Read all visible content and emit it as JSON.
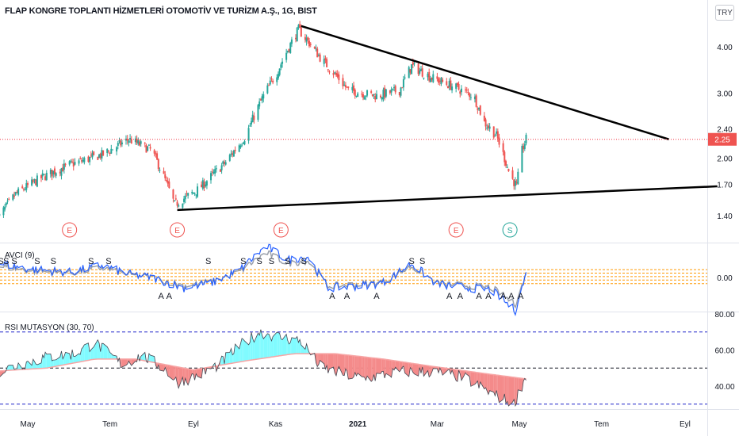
{
  "header": {
    "title": "FLAP KONGRE TOPLANTI HİZMETLERİ OTOMOTİV VE TURİZM A.Ş., 1G, BIST",
    "currency": "TRY"
  },
  "main": {
    "price_axis_ticks": [
      "4.00",
      "3.00",
      "2.40",
      "2.00",
      "1.70",
      "1.40"
    ],
    "last_price": "2.25",
    "time_axis_labels": [
      "May",
      "Tem",
      "Eyl",
      "Kas",
      "2021",
      "Mar",
      "May",
      "Tem",
      "Eyl"
    ],
    "event_markers": [
      "E",
      "E",
      "E",
      "E",
      "S"
    ]
  },
  "avci": {
    "label": "AVCI (9)",
    "axis_ticks": [
      "0.00"
    ],
    "sell_markers": [
      "S",
      "S",
      "S",
      "S",
      "S",
      "S",
      "S",
      "S",
      "S",
      "S",
      "S",
      "S",
      "S",
      "S",
      "S",
      "S",
      "S"
    ],
    "buy_markers": [
      "A",
      "A",
      "A",
      "A",
      "A",
      "A",
      "A",
      "A",
      "A",
      "A",
      "A",
      "A"
    ]
  },
  "rsi": {
    "label": "RSI MUTASYON (30, 70)",
    "axis_ticks": [
      "80.00",
      "60.00",
      "40.00"
    ]
  },
  "colors": {
    "up": "#26a69a",
    "down": "#ef5350",
    "marker_e": "#ef5350",
    "marker_s": "#26a69a",
    "rsi_above": "#80fbff",
    "rsi_below": "#f48a8a",
    "dotted_price": "#f23645",
    "band_orange": "#ff9800",
    "rsi_dash": "#1e22c9"
  },
  "chart_data": [
    {
      "type": "candlestick",
      "title": "FLAP KONGRE TOPLANTI HİZMETLERİ OTOMOTİV VE TURİZM A.Ş., 1G, BIST",
      "scale": "log",
      "ylim": [
        1.3,
        4.7
      ],
      "y_ticks": [
        4.0,
        3.0,
        2.4,
        2.0,
        1.7,
        1.4
      ],
      "last_price": 2.25,
      "x_ticks": [
        "May",
        "Tem",
        "Eyl",
        "Kas",
        "2021",
        "Mar",
        "May",
        "Tem",
        "Eyl"
      ],
      "keypoints": [
        {
          "date": "2020-04-08",
          "price": 1.36
        },
        {
          "date": "2020-04-22",
          "price": 1.6
        },
        {
          "date": "2020-05-12",
          "price": 1.78
        },
        {
          "date": "2020-06-01",
          "price": 1.92
        },
        {
          "date": "2020-06-26",
          "price": 2.05
        },
        {
          "date": "2020-07-15",
          "price": 2.25
        },
        {
          "date": "2020-08-01",
          "price": 2.1
        },
        {
          "date": "2020-08-18",
          "price": 1.5
        },
        {
          "date": "2020-09-05",
          "price": 1.65
        },
        {
          "date": "2020-09-25",
          "price": 1.95
        },
        {
          "date": "2020-10-10",
          "price": 2.3
        },
        {
          "date": "2020-10-22",
          "price": 2.9
        },
        {
          "date": "2020-11-02",
          "price": 3.4
        },
        {
          "date": "2020-11-18",
          "price": 4.45
        },
        {
          "date": "2020-12-05",
          "price": 3.7
        },
        {
          "date": "2020-12-25",
          "price": 3.05
        },
        {
          "date": "2021-01-15",
          "price": 2.95
        },
        {
          "date": "2021-02-01",
          "price": 3.05
        },
        {
          "date": "2021-02-10",
          "price": 3.55
        },
        {
          "date": "2021-02-25",
          "price": 3.3
        },
        {
          "date": "2021-03-15",
          "price": 3.1
        },
        {
          "date": "2021-03-28",
          "price": 2.95
        },
        {
          "date": "2021-04-05",
          "price": 2.5
        },
        {
          "date": "2021-04-14",
          "price": 2.3
        },
        {
          "date": "2021-04-24",
          "price": 1.8
        },
        {
          "date": "2021-04-29",
          "price": 1.68
        },
        {
          "date": "2021-05-03",
          "price": 2.1
        },
        {
          "date": "2021-05-06",
          "price": 2.25
        }
      ],
      "trendlines": [
        {
          "from": {
            "date": "2020-11-20",
            "price": 4.55
          },
          "to": {
            "date": "2021-08-20",
            "price": 2.25
          }
        },
        {
          "from": {
            "date": "2020-08-20",
            "price": 1.45
          },
          "to": {
            "date": "2021-09-25",
            "price": 1.68
          }
        }
      ],
      "event_markers": [
        {
          "label": "E",
          "date": "2020-06-01"
        },
        {
          "label": "E",
          "date": "2020-08-20"
        },
        {
          "label": "E",
          "date": "2020-11-05"
        },
        {
          "label": "E",
          "date": "2021-03-15"
        },
        {
          "label": "S",
          "date": "2021-04-24"
        }
      ]
    },
    {
      "type": "line",
      "title": "AVCI (9)",
      "ylim": [
        -2.5,
        2.2
      ],
      "y_ticks": [
        0.0
      ],
      "bands": [
        0.45,
        0.25,
        0.05,
        -0.15,
        -0.35
      ],
      "keypoints": [
        {
          "date": "2020-04-05",
          "value": 0.9
        },
        {
          "date": "2020-05-01",
          "value": 0.5
        },
        {
          "date": "2020-06-01",
          "value": 0.3
        },
        {
          "date": "2020-06-25",
          "value": 0.7
        },
        {
          "date": "2020-07-15",
          "value": 0.2
        },
        {
          "date": "2020-08-01",
          "value": 0.0
        },
        {
          "date": "2020-08-25",
          "value": -0.6
        },
        {
          "date": "2020-09-15",
          "value": -0.3
        },
        {
          "date": "2020-10-05",
          "value": 0.4
        },
        {
          "date": "2020-10-25",
          "value": 1.8
        },
        {
          "date": "2020-11-10",
          "value": 1.0
        },
        {
          "date": "2020-11-25",
          "value": 1.2
        },
        {
          "date": "2020-12-10",
          "value": -0.6
        },
        {
          "date": "2021-01-01",
          "value": -0.5
        },
        {
          "date": "2021-01-20",
          "value": -0.3
        },
        {
          "date": "2021-02-10",
          "value": 0.8
        },
        {
          "date": "2021-03-01",
          "value": -0.4
        },
        {
          "date": "2021-03-25",
          "value": -0.6
        },
        {
          "date": "2021-04-10",
          "value": -0.7
        },
        {
          "date": "2021-04-28",
          "value": -1.9
        },
        {
          "date": "2021-05-06",
          "value": 0.2
        }
      ],
      "sell_signal_dates": [
        "2020-04-01",
        "2020-04-08",
        "2020-04-11",
        "2020-04-15",
        "2020-04-21",
        "2020-05-08",
        "2020-05-20",
        "2020-06-17",
        "2020-06-30",
        "2020-09-12",
        "2020-10-08",
        "2020-10-20",
        "2020-10-29",
        "2020-11-10",
        "2020-11-22",
        "2021-02-10",
        "2021-02-18"
      ],
      "buy_signal_dates": [
        "2020-08-08",
        "2020-08-14",
        "2020-12-13",
        "2020-12-24",
        "2021-01-15",
        "2021-03-10",
        "2021-03-18",
        "2021-04-01",
        "2021-04-08",
        "2021-04-19",
        "2021-04-25",
        "2021-05-02"
      ]
    },
    {
      "type": "area",
      "title": "RSI MUTASYON (30, 70)",
      "ylim": [
        28,
        82
      ],
      "y_ticks": [
        80.0,
        60.0,
        40.0
      ],
      "hlines": [
        70,
        50,
        30
      ],
      "series": [
        {
          "name": "RSI",
          "keypoints": [
            {
              "date": "2020-04-01",
              "value": 46
            },
            {
              "date": "2020-04-25",
              "value": 52
            },
            {
              "date": "2020-05-15",
              "value": 56
            },
            {
              "date": "2020-06-05",
              "value": 58
            },
            {
              "date": "2020-06-20",
              "value": 64
            },
            {
              "date": "2020-07-10",
              "value": 52
            },
            {
              "date": "2020-07-25",
              "value": 57
            },
            {
              "date": "2020-08-10",
              "value": 50
            },
            {
              "date": "2020-08-20",
              "value": 42
            },
            {
              "date": "2020-09-05",
              "value": 46
            },
            {
              "date": "2020-09-20",
              "value": 52
            },
            {
              "date": "2020-10-05",
              "value": 62
            },
            {
              "date": "2020-10-20",
              "value": 70
            },
            {
              "date": "2020-11-05",
              "value": 67
            },
            {
              "date": "2020-11-20",
              "value": 65
            },
            {
              "date": "2020-12-05",
              "value": 50
            },
            {
              "date": "2021-01-05",
              "value": 44
            },
            {
              "date": "2021-02-01",
              "value": 48
            },
            {
              "date": "2021-02-25",
              "value": 48
            },
            {
              "date": "2021-03-20",
              "value": 45
            },
            {
              "date": "2021-04-10",
              "value": 36
            },
            {
              "date": "2021-04-27",
              "value": 30
            },
            {
              "date": "2021-05-06",
              "value": 46
            }
          ]
        },
        {
          "name": "Signal",
          "keypoints": [
            {
              "date": "2020-04-01",
              "value": 48
            },
            {
              "date": "2020-05-15",
              "value": 50
            },
            {
              "date": "2020-06-20",
              "value": 55
            },
            {
              "date": "2020-07-20",
              "value": 55
            },
            {
              "date": "2020-09-01",
              "value": 49
            },
            {
              "date": "2020-10-10",
              "value": 54
            },
            {
              "date": "2020-11-15",
              "value": 58
            },
            {
              "date": "2020-12-15",
              "value": 58
            },
            {
              "date": "2021-01-20",
              "value": 55
            },
            {
              "date": "2021-02-25",
              "value": 51
            },
            {
              "date": "2021-04-05",
              "value": 47
            },
            {
              "date": "2021-05-06",
              "value": 44
            }
          ]
        }
      ]
    }
  ]
}
